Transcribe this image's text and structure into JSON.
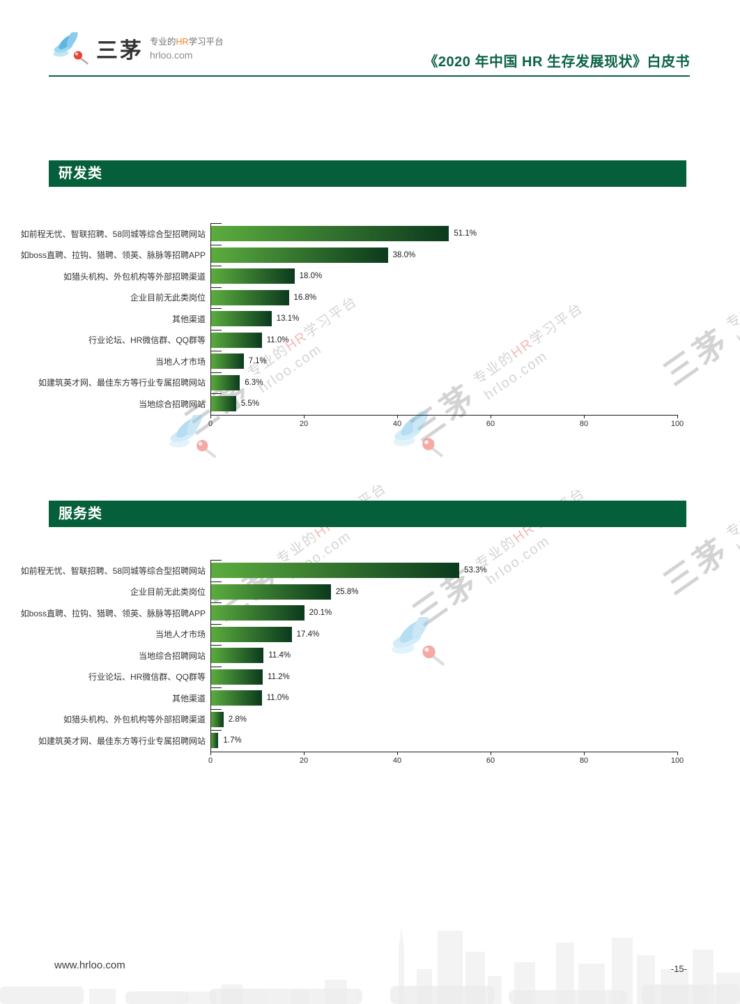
{
  "header": {
    "logo": {
      "brand": "三茅",
      "tagline_prefix": "专业的",
      "tagline_hr": "HR",
      "tagline_suffix": "学习平台",
      "domain": "hrloo.com"
    },
    "title": "《2020 年中国 HR 生存发展现状》白皮书"
  },
  "watermark": {
    "brand": "三茅",
    "tagline_prefix": "专业的",
    "tagline_hr": "HR",
    "tagline_suffix": "学习平台",
    "domain": "hrloo.com"
  },
  "footer": {
    "site": "www.hrloo.com",
    "page_number": "-15-"
  },
  "colors": {
    "section_green": "#065f3b",
    "title_green": "#0a6342",
    "header_rule": "#0c6140",
    "bar_gradient_start": "#5cad3f",
    "bar_gradient_end": "#0b3a1d",
    "hr_orange": "#f07f1f",
    "logo_red": "#e8423a",
    "logo_blue": "#5fb6e4"
  },
  "chart_data": [
    {
      "type": "bar",
      "orientation": "horizontal",
      "section_title": "研发类",
      "categories": [
        "如前程无忧、智联招聘、58同城等综合型招聘网站",
        "如boss直聘、拉钩、猎聘、领英、脉脉等招聘APP",
        "如猎头机构、外包机构等外部招聘渠道",
        "企业目前无此类岗位",
        "其他渠道",
        "行业论坛、HR微信群、QQ群等",
        "当地人才市场",
        "如建筑英才网、最佳东方等行业专属招聘网站",
        "当地综合招聘网站"
      ],
      "values": [
        51.1,
        38.0,
        18.0,
        16.8,
        13.1,
        11.0,
        7.1,
        6.3,
        5.5
      ],
      "value_labels": [
        "51.1%",
        "38.0%",
        "18.0%",
        "16.8%",
        "13.1%",
        "11.0%",
        "7.1%",
        "6.3%",
        "5.5%"
      ],
      "xlim": [
        0,
        100
      ],
      "xticks": [
        0,
        20,
        40,
        60,
        80,
        100
      ],
      "grid": false,
      "legend": null
    },
    {
      "type": "bar",
      "orientation": "horizontal",
      "section_title": "服务类",
      "categories": [
        "如前程无忧、智联招聘、58同城等综合型招聘网站",
        "企业目前无此类岗位",
        "如boss直聘、拉钩、猎聘、领英、脉脉等招聘APP",
        "当地人才市场",
        "当地综合招聘网站",
        "行业论坛、HR微信群、QQ群等",
        "其他渠道",
        "如猎头机构、外包机构等外部招聘渠道",
        "如建筑英才网、最佳东方等行业专属招聘网站"
      ],
      "values": [
        53.3,
        25.8,
        20.1,
        17.4,
        11.4,
        11.2,
        11.0,
        2.8,
        1.7
      ],
      "value_labels": [
        "53.3%",
        "25.8%",
        "20.1%",
        "17.4%",
        "11.4%",
        "11.2%",
        "11.0%",
        "2.8%",
        "1.7%"
      ],
      "xlim": [
        0,
        100
      ],
      "xticks": [
        0,
        20,
        40,
        60,
        80,
        100
      ],
      "grid": false,
      "legend": null
    }
  ]
}
